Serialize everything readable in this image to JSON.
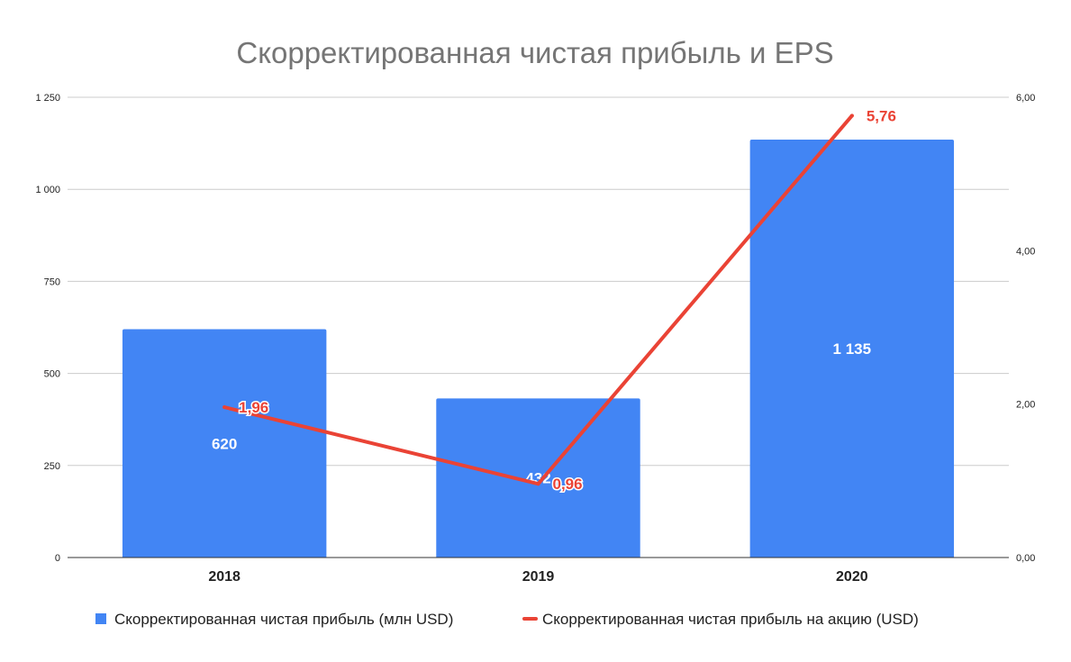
{
  "chart_data": {
    "type": "bar",
    "title": "Скорректированная чистая прибыль и EPS",
    "categories": [
      "2018",
      "2019",
      "2020"
    ],
    "series": [
      {
        "name": "Скорректированная чистая прибыль  (млн USD)",
        "type": "bar",
        "axis": "left",
        "color": "#4285f4",
        "values": [
          620,
          432,
          1135
        ],
        "labels": [
          "620",
          "432",
          "1 135"
        ]
      },
      {
        "name": "Скорректированная чистая прибыль на акцию (USD)",
        "type": "line",
        "axis": "right",
        "color": "#ea4335",
        "values": [
          1.96,
          0.96,
          5.76
        ],
        "labels": [
          "1,96",
          "0,96",
          "5,76"
        ]
      }
    ],
    "y_left": {
      "ylim": [
        0,
        1250
      ],
      "ticks": [
        0,
        250,
        500,
        750,
        1000,
        1250
      ],
      "tick_labels": [
        "0",
        "250",
        "500",
        "750",
        "1 000",
        "1 250"
      ]
    },
    "y_right": {
      "ylim": [
        0,
        6
      ],
      "ticks": [
        0,
        2,
        4,
        6
      ],
      "tick_labels": [
        "0,00",
        "2,00",
        "4,00",
        "6,00"
      ]
    },
    "grid": true,
    "legend_position": "bottom"
  }
}
